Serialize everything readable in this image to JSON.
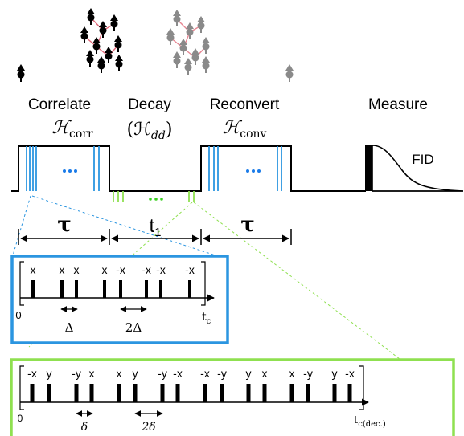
{
  "stages": {
    "correlate": "Correlate",
    "decay": "Decay",
    "reconvert": "Reconvert",
    "measure": "Measure"
  },
  "hamiltonians": {
    "corr_base": "ℋ",
    "corr_sub": "corr",
    "dd_open": "(ℋ",
    "dd_sub": "dd",
    "dd_close": ")",
    "conv_base": "ℋ",
    "conv_sub": "conv"
  },
  "fid_label": "FID",
  "timing": {
    "tau_left": "τ",
    "t1_base": "t",
    "t1_sub": "1",
    "tau_right": "τ"
  },
  "blue_box": {
    "pulses": [
      "x",
      "x",
      "x",
      "x",
      "-x",
      "-x",
      "-x",
      "-x"
    ],
    "zero": "0",
    "delta": "Δ",
    "two_delta": "2Δ",
    "tc_base": "t",
    "tc_sub": "c"
  },
  "green_box": {
    "pulses": [
      "-x",
      "y",
      "-y",
      "x",
      "x",
      "y",
      "-y",
      "-x",
      "-x",
      "-y",
      "y",
      "x",
      "x",
      "-y",
      "y",
      "-x"
    ],
    "zero": "0",
    "delta": "δ",
    "two_delta": "2δ",
    "tc_base": "t",
    "tc_sub": "c(dec.)"
  },
  "colors": {
    "blue": "#2b95e0",
    "green": "#8fe050",
    "dots_blue": "#1a7be8",
    "dots_green": "#3ad020",
    "spin_black": "#000000",
    "spin_gray": "#8a8a8a",
    "bond": "#e06878"
  }
}
